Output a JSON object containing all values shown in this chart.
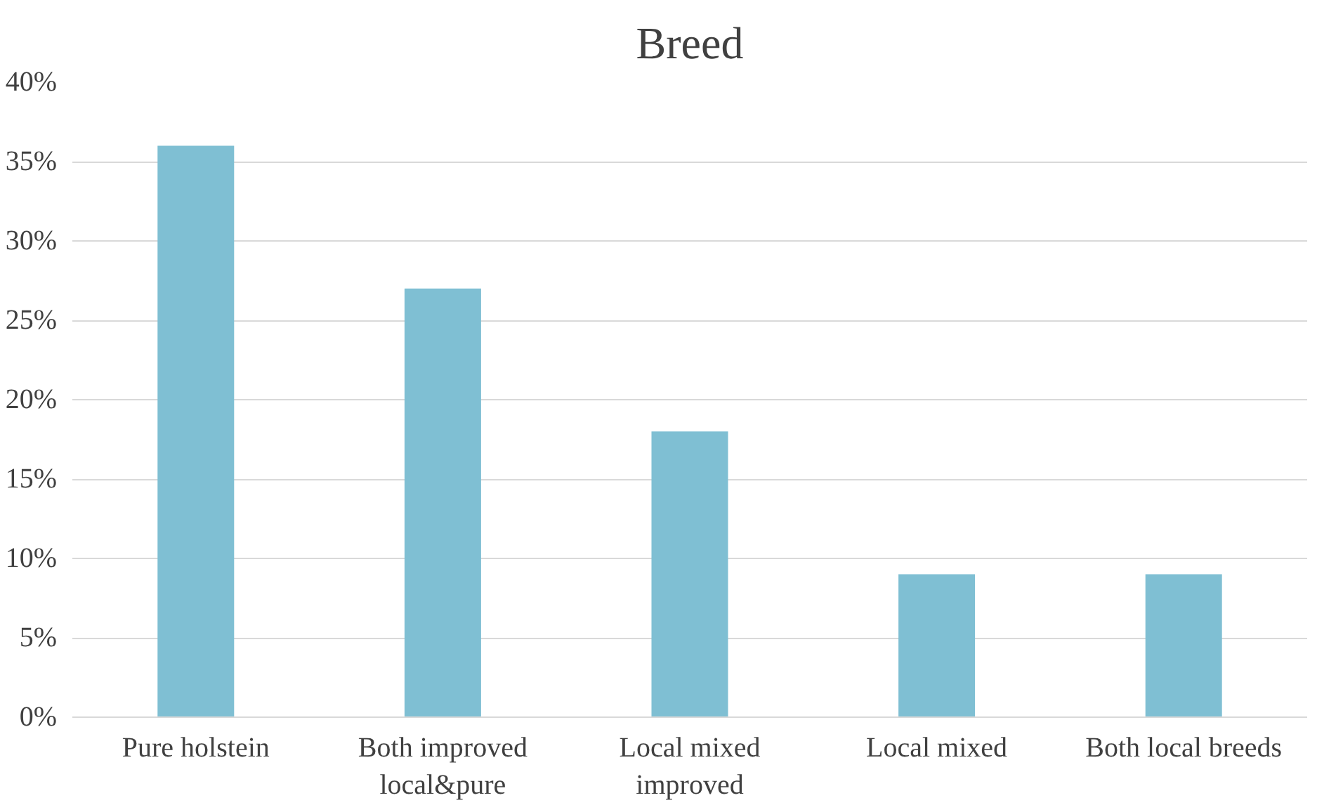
{
  "chart_data": {
    "type": "bar",
    "title": "Breed",
    "categories": [
      "Pure holstein",
      "Both improved local&pure",
      "Local mixed improved",
      "Local mixed",
      "Both local breeds"
    ],
    "values": [
      36,
      27,
      18,
      9,
      9
    ],
    "color": "#7fbfd3",
    "ylim": [
      0,
      40
    ],
    "yticks": [
      {
        "value": 0,
        "label": "0%"
      },
      {
        "value": 5,
        "label": "5%"
      },
      {
        "value": 10,
        "label": "10%"
      },
      {
        "value": 15,
        "label": "15%"
      },
      {
        "value": 20,
        "label": "20%"
      },
      {
        "value": 25,
        "label": "25%"
      },
      {
        "value": 30,
        "label": "30%"
      },
      {
        "value": 35,
        "label": "35%"
      },
      {
        "value": 40,
        "label": "40%"
      }
    ],
    "grid": "y"
  }
}
